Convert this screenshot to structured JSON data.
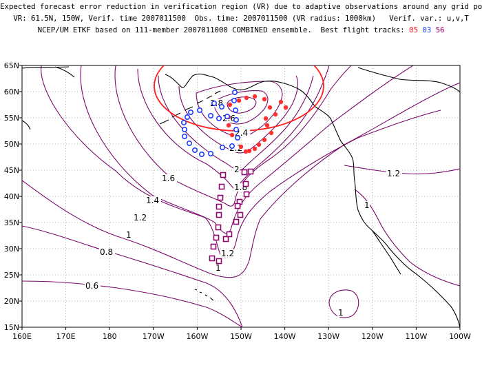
{
  "header": {
    "line1": "Expected forecast error reduction in verification region (VR) due to adaptive observations around any grid point.",
    "line2": "VR: 61.5N, 150W, Verif. time 2007011500  Obs. time: 2007011500 (VR radius: 1000km)   Verif. var.: u,v,T",
    "line3_prefix": "NCEP/UM ETKF based on 111-member 2007011000 COMBINED ensemble.  Best flight tracks:",
    "track_labels": [
      "05",
      "03",
      "56"
    ]
  },
  "colors": {
    "red_track": "#ff3030",
    "blue_track": "#1e3cff",
    "purple_track": "#8b0a6e",
    "contour": "#7a0a6a",
    "verification_circle": "#ff2020",
    "coast": "#000000",
    "grid": "#999999"
  },
  "axes": {
    "x_ticks": [
      "160E",
      "170E",
      "180",
      "170W",
      "160W",
      "150W",
      "140W",
      "130W",
      "120W",
      "110W",
      "100W"
    ],
    "y_ticks": [
      "65N",
      "60N",
      "55N",
      "50N",
      "45N",
      "40N",
      "35N",
      "30N",
      "25N",
      "20N",
      "15N"
    ]
  },
  "contour_labels": [
    "2.8",
    "2.6",
    "2.4",
    "2.2",
    "2",
    "1.8",
    "1.6",
    "1.4",
    "1.2",
    "1",
    "0.8",
    "0.6",
    "1.2",
    "1.2",
    "1",
    "1",
    "1"
  ],
  "verification_region": {
    "center_lat": 61.5,
    "center_lon": -150,
    "radius_km": 1000
  },
  "icons": {
    "red": "filled-dot",
    "blue": "open-circle",
    "purple": "open-square"
  }
}
